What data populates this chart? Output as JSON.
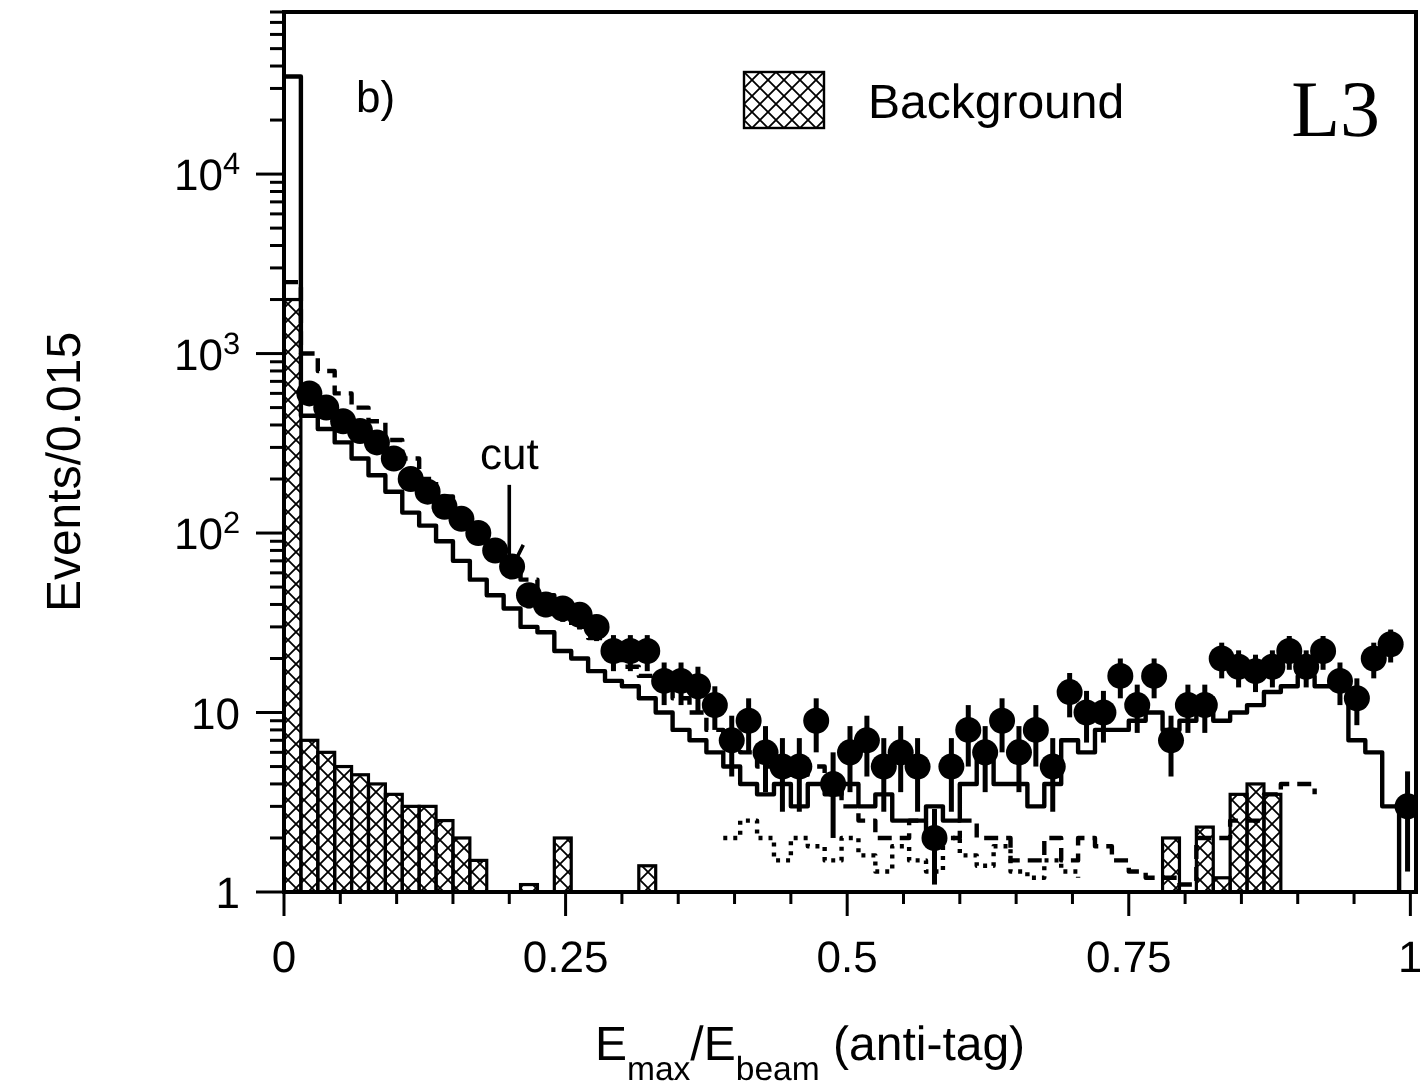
{
  "chart_data": {
    "type": "histogram",
    "xlabel": "E$_{max}$/E$_{beam}$ (anti-tag)",
    "ylabel": "Events/0.015",
    "log": "y",
    "legend": "top",
    "annotations": [
      "b)",
      "L3",
      {
        "text": "cut",
        "x": 0.2,
        "y": 60
      }
    ],
    "xlim": [
      0,
      1.005
    ],
    "ylim": [
      1,
      80000
    ],
    "xticks": [
      0,
      {
        "value": 0.05,
        "label": null
      },
      {
        "value": 0.1,
        "label": null
      },
      {
        "value": 0.15,
        "label": null
      },
      {
        "value": 0.2,
        "label": null
      },
      0.25,
      {
        "value": 0.3,
        "label": null
      },
      {
        "value": 0.35,
        "label": null
      },
      {
        "value": 0.4,
        "label": null
      },
      {
        "value": 0.45,
        "label": null
      },
      0.5,
      {
        "value": 0.55,
        "label": null
      },
      {
        "value": 0.6,
        "label": null
      },
      {
        "value": 0.65,
        "label": null
      },
      {
        "value": 0.7,
        "label": null
      },
      0.75,
      {
        "value": 0.8,
        "label": null
      },
      {
        "value": 0.85,
        "label": null
      },
      {
        "value": 0.9,
        "label": null
      },
      {
        "value": 0.95,
        "label": null
      },
      1
    ],
    "yticks": [
      1,
      {
        "value": 2,
        "label": null
      },
      {
        "value": 3,
        "label": null
      },
      {
        "value": 4,
        "label": null
      },
      {
        "value": 5,
        "label": null
      },
      {
        "value": 6,
        "label": null
      },
      {
        "value": 7,
        "label": null
      },
      {
        "value": 8,
        "label": null
      },
      {
        "value": 9,
        "label": null
      },
      10,
      {
        "value": 20,
        "label": null
      },
      {
        "value": 30,
        "label": null
      },
      {
        "value": 40,
        "label": null
      },
      {
        "value": 50,
        "label": null
      },
      {
        "value": 60,
        "label": null
      },
      {
        "value": 70,
        "label": null
      },
      {
        "value": 80,
        "label": null
      },
      {
        "value": 90,
        "label": null
      },
      {
        "value": 100,
        "label": "10$^{2}$"
      },
      {
        "value": 200,
        "label": null
      },
      {
        "value": 300,
        "label": null
      },
      {
        "value": 400,
        "label": null
      },
      {
        "value": 500,
        "label": null
      },
      {
        "value": 600,
        "label": null
      },
      {
        "value": 700,
        "label": null
      },
      {
        "value": 800,
        "label": null
      },
      {
        "value": 900,
        "label": null
      },
      {
        "value": 1000,
        "label": "10$^{3}$"
      },
      {
        "value": 2000,
        "label": null
      },
      {
        "value": 3000,
        "label": null
      },
      {
        "value": 4000,
        "label": null
      },
      {
        "value": 5000,
        "label": null
      },
      {
        "value": 6000,
        "label": null
      },
      {
        "value": 7000,
        "label": null
      },
      {
        "value": 8000,
        "label": null
      },
      {
        "value": 9000,
        "label": null
      },
      {
        "value": 10000,
        "label": "10$^{4}$"
      },
      {
        "value": 20000,
        "label": null
      },
      {
        "value": 30000,
        "label": null
      },
      {
        "value": 40000,
        "label": null
      },
      {
        "value": 50000,
        "label": null
      },
      {
        "value": 60000,
        "label": null
      },
      {
        "value": 70000,
        "label": null
      },
      {
        "value": 80000,
        "label": null
      }
    ],
    "bins": [
      0,
      0.015,
      0.03,
      0.045,
      0.06,
      0.075,
      0.09,
      0.105,
      0.12,
      0.135,
      0.15,
      0.165,
      0.18,
      0.195,
      0.21,
      0.225,
      0.24,
      0.255,
      0.27,
      0.285,
      0.3,
      0.315,
      0.33,
      0.345,
      0.36,
      0.375,
      0.39,
      0.405,
      0.42,
      0.435,
      0.45,
      0.465,
      0.48,
      0.495,
      0.51,
      0.525,
      0.54,
      0.555,
      0.57,
      0.585,
      0.6,
      0.615,
      0.63,
      0.645,
      0.66,
      0.675,
      0.69,
      0.705,
      0.72,
      0.735,
      0.75,
      0.765,
      0.78,
      0.795,
      0.81,
      0.825,
      0.84,
      0.855,
      0.87,
      0.885,
      0.9,
      0.915,
      0.93,
      0.945,
      0.96,
      0.975,
      0.99,
      1.005
    ],
    "series": [
      {
        "name": "Background",
        "color": "#000000",
        "values": [
          2000,
          7,
          6,
          5,
          4.5,
          4,
          3.5,
          3,
          3,
          2.5,
          2,
          1.5,
          null,
          null,
          1.1,
          null,
          2,
          null,
          null,
          null,
          null,
          1.4,
          null,
          null,
          null,
          null,
          null,
          null,
          null,
          null,
          null,
          null,
          null,
          null,
          null,
          null,
          null,
          null,
          null,
          null,
          null,
          null,
          null,
          null,
          null,
          null,
          null,
          null,
          null,
          null,
          null,
          null,
          2,
          null,
          2.3,
          1.2,
          3.5,
          4,
          3.5,
          null,
          null,
          null,
          null,
          null,
          null,
          null,
          null
        ]
      },
      {
        "type": "step",
        "line_style": "solid",
        "color": "#000000",
        "x": [
          0,
          0.015,
          0.03,
          0.045,
          0.06,
          0.075,
          0.09,
          0.105,
          0.12,
          0.135,
          0.15,
          0.165,
          0.18,
          0.195,
          0.21,
          0.225,
          0.24,
          0.255,
          0.27,
          0.285,
          0.3,
          0.315,
          0.33,
          0.345,
          0.36,
          0.375,
          0.39,
          0.405,
          0.42,
          0.435,
          0.45,
          0.465,
          0.48,
          0.495,
          0.51,
          0.525,
          0.54,
          0.555,
          0.57,
          0.585,
          0.6,
          0.615,
          0.63,
          0.645,
          0.66,
          0.675,
          0.69,
          0.705,
          0.72,
          0.735,
          0.75,
          0.765,
          0.78,
          0.795,
          0.81,
          0.825,
          0.84,
          0.855,
          0.87,
          0.885,
          0.9,
          0.915,
          0.93,
          0.945,
          0.96,
          0.975,
          0.99
        ],
        "values": [
          35000,
          450,
          380,
          320,
          260,
          210,
          170,
          130,
          110,
          90,
          70,
          55,
          45,
          38,
          30,
          28,
          22,
          20,
          17,
          15,
          14,
          12,
          10,
          8,
          7,
          6,
          5,
          4,
          3.5,
          4,
          3,
          4,
          3.5,
          4,
          3,
          3.5,
          2.5,
          2.5,
          3,
          2.5,
          4,
          6,
          4,
          4,
          3,
          4,
          7,
          6,
          8,
          8,
          9,
          10,
          8,
          9,
          12,
          9,
          10,
          11,
          13,
          14,
          16,
          14,
          14,
          7,
          6,
          3,
          1
        ]
      },
      {
        "type": "step",
        "line_style": "dashed",
        "color": "#000000",
        "x": [
          0,
          0.015,
          0.03,
          0.045,
          0.06,
          0.075,
          0.09,
          0.105,
          0.12,
          0.135,
          0.15,
          0.165,
          0.18,
          0.195,
          0.21,
          0.225,
          0.24,
          0.255,
          0.27,
          0.285,
          0.3,
          0.315,
          0.33,
          0.345,
          0.36,
          0.375,
          0.39,
          0.405,
          0.42,
          0.435,
          0.45,
          0.465,
          0.48,
          0.495,
          0.51,
          0.525,
          0.54,
          0.555,
          0.57,
          0.585,
          0.6,
          0.615,
          0.63,
          0.645,
          0.66,
          0.675,
          0.69,
          0.705,
          0.72,
          0.735,
          0.75,
          0.765,
          0.78,
          0.795,
          0.81,
          0.825,
          0.84,
          0.855,
          0.87,
          0.885,
          0.9,
          0.915
        ],
        "values": [
          2500,
          1000,
          800,
          600,
          500,
          420,
          330,
          260,
          200,
          160,
          130,
          100,
          80,
          65,
          55,
          45,
          38,
          30,
          26,
          22,
          18,
          16,
          14,
          12,
          10,
          8,
          7,
          6,
          5,
          5,
          4.5,
          5,
          4,
          3,
          2.5,
          2,
          2,
          2.5,
          2,
          2,
          2.5,
          2,
          2,
          1.5,
          1.5,
          2,
          1.5,
          2,
          1.8,
          1.5,
          1.3,
          1.2,
          1.2,
          1.1,
          2,
          2,
          2.5,
          2.5,
          3.5,
          4,
          4,
          3.5
        ]
      },
      {
        "type": "step",
        "line_style": "dotted",
        "color": "#000000",
        "x": [
          0.39,
          0.405,
          0.42,
          0.435,
          0.45,
          0.465,
          0.48,
          0.495,
          0.51,
          0.525,
          0.54,
          0.555,
          0.57,
          0.585,
          0.6,
          0.615,
          0.63,
          0.645,
          0.66,
          0.675,
          0.69,
          0.705
        ],
        "values": [
          2,
          2.5,
          2,
          1.5,
          2,
          1.8,
          1.5,
          2,
          1.6,
          1.3,
          1.8,
          1.5,
          1.3,
          2,
          1.6,
          1.4,
          1.8,
          1.3,
          1.2,
          1.5,
          1.3,
          1.2
        ]
      },
      {
        "type": "scatter",
        "marker": "circle",
        "color": "#000000",
        "x": [
          0.0225,
          0.0375,
          0.0525,
          0.0675,
          0.0825,
          0.0975,
          0.1125,
          0.1275,
          0.1425,
          0.1575,
          0.1725,
          0.1875,
          0.2025,
          0.2175,
          0.2325,
          0.2475,
          0.2625,
          0.2775,
          0.2925,
          0.3075,
          0.3225,
          0.3375,
          0.3525,
          0.3675,
          0.3825,
          0.3975,
          0.4125,
          0.4275,
          0.4425,
          0.4575,
          0.4725,
          0.4875,
          0.5025,
          0.5175,
          0.5325,
          0.5475,
          0.5625,
          0.5775,
          0.5925,
          0.6075,
          0.6225,
          0.6375,
          0.6525,
          0.6675,
          0.6825,
          0.6975,
          0.7125,
          0.7275,
          0.7425,
          0.7575,
          0.7725,
          0.7875,
          0.8025,
          0.8175,
          0.8325,
          0.8475,
          0.8625,
          0.8775,
          0.8925,
          0.9075,
          0.9225,
          0.9375,
          0.9525,
          0.9675,
          0.9825,
          0.9975
        ],
        "values": [
          600,
          500,
          420,
          370,
          320,
          260,
          200,
          170,
          140,
          120,
          100,
          80,
          65,
          45,
          40,
          38,
          35,
          30,
          22,
          22,
          22,
          15,
          15,
          14,
          11,
          7,
          9,
          6,
          5,
          5,
          9,
          4,
          6,
          7,
          5,
          6,
          5,
          2,
          5,
          8,
          6,
          9,
          6,
          8,
          5,
          13,
          10,
          10,
          16,
          11,
          16,
          7,
          11,
          11,
          20,
          18,
          17,
          18,
          22,
          18,
          22,
          15,
          12,
          20,
          24,
          3
        ],
        "errors": [
          24,
          22,
          20,
          19,
          18,
          16,
          14,
          13,
          12,
          11,
          10,
          9,
          8,
          7,
          6,
          6,
          6,
          5,
          5,
          5,
          5,
          4,
          4,
          4,
          3,
          2.6,
          3,
          2.4,
          2.2,
          2.2,
          3,
          2,
          2.4,
          2.6,
          2.2,
          2.4,
          2.2,
          0.9,
          2.2,
          3,
          2.4,
          3,
          2.4,
          3,
          2.2,
          3.6,
          3.2,
          3.2,
          4,
          3.3,
          4,
          2.6,
          3.3,
          3.3,
          4.5,
          4.2,
          4,
          4.2,
          4.7,
          4.2,
          4.7,
          4,
          3.5,
          4.5,
          5,
          1.7
        ]
      }
    ]
  }
}
